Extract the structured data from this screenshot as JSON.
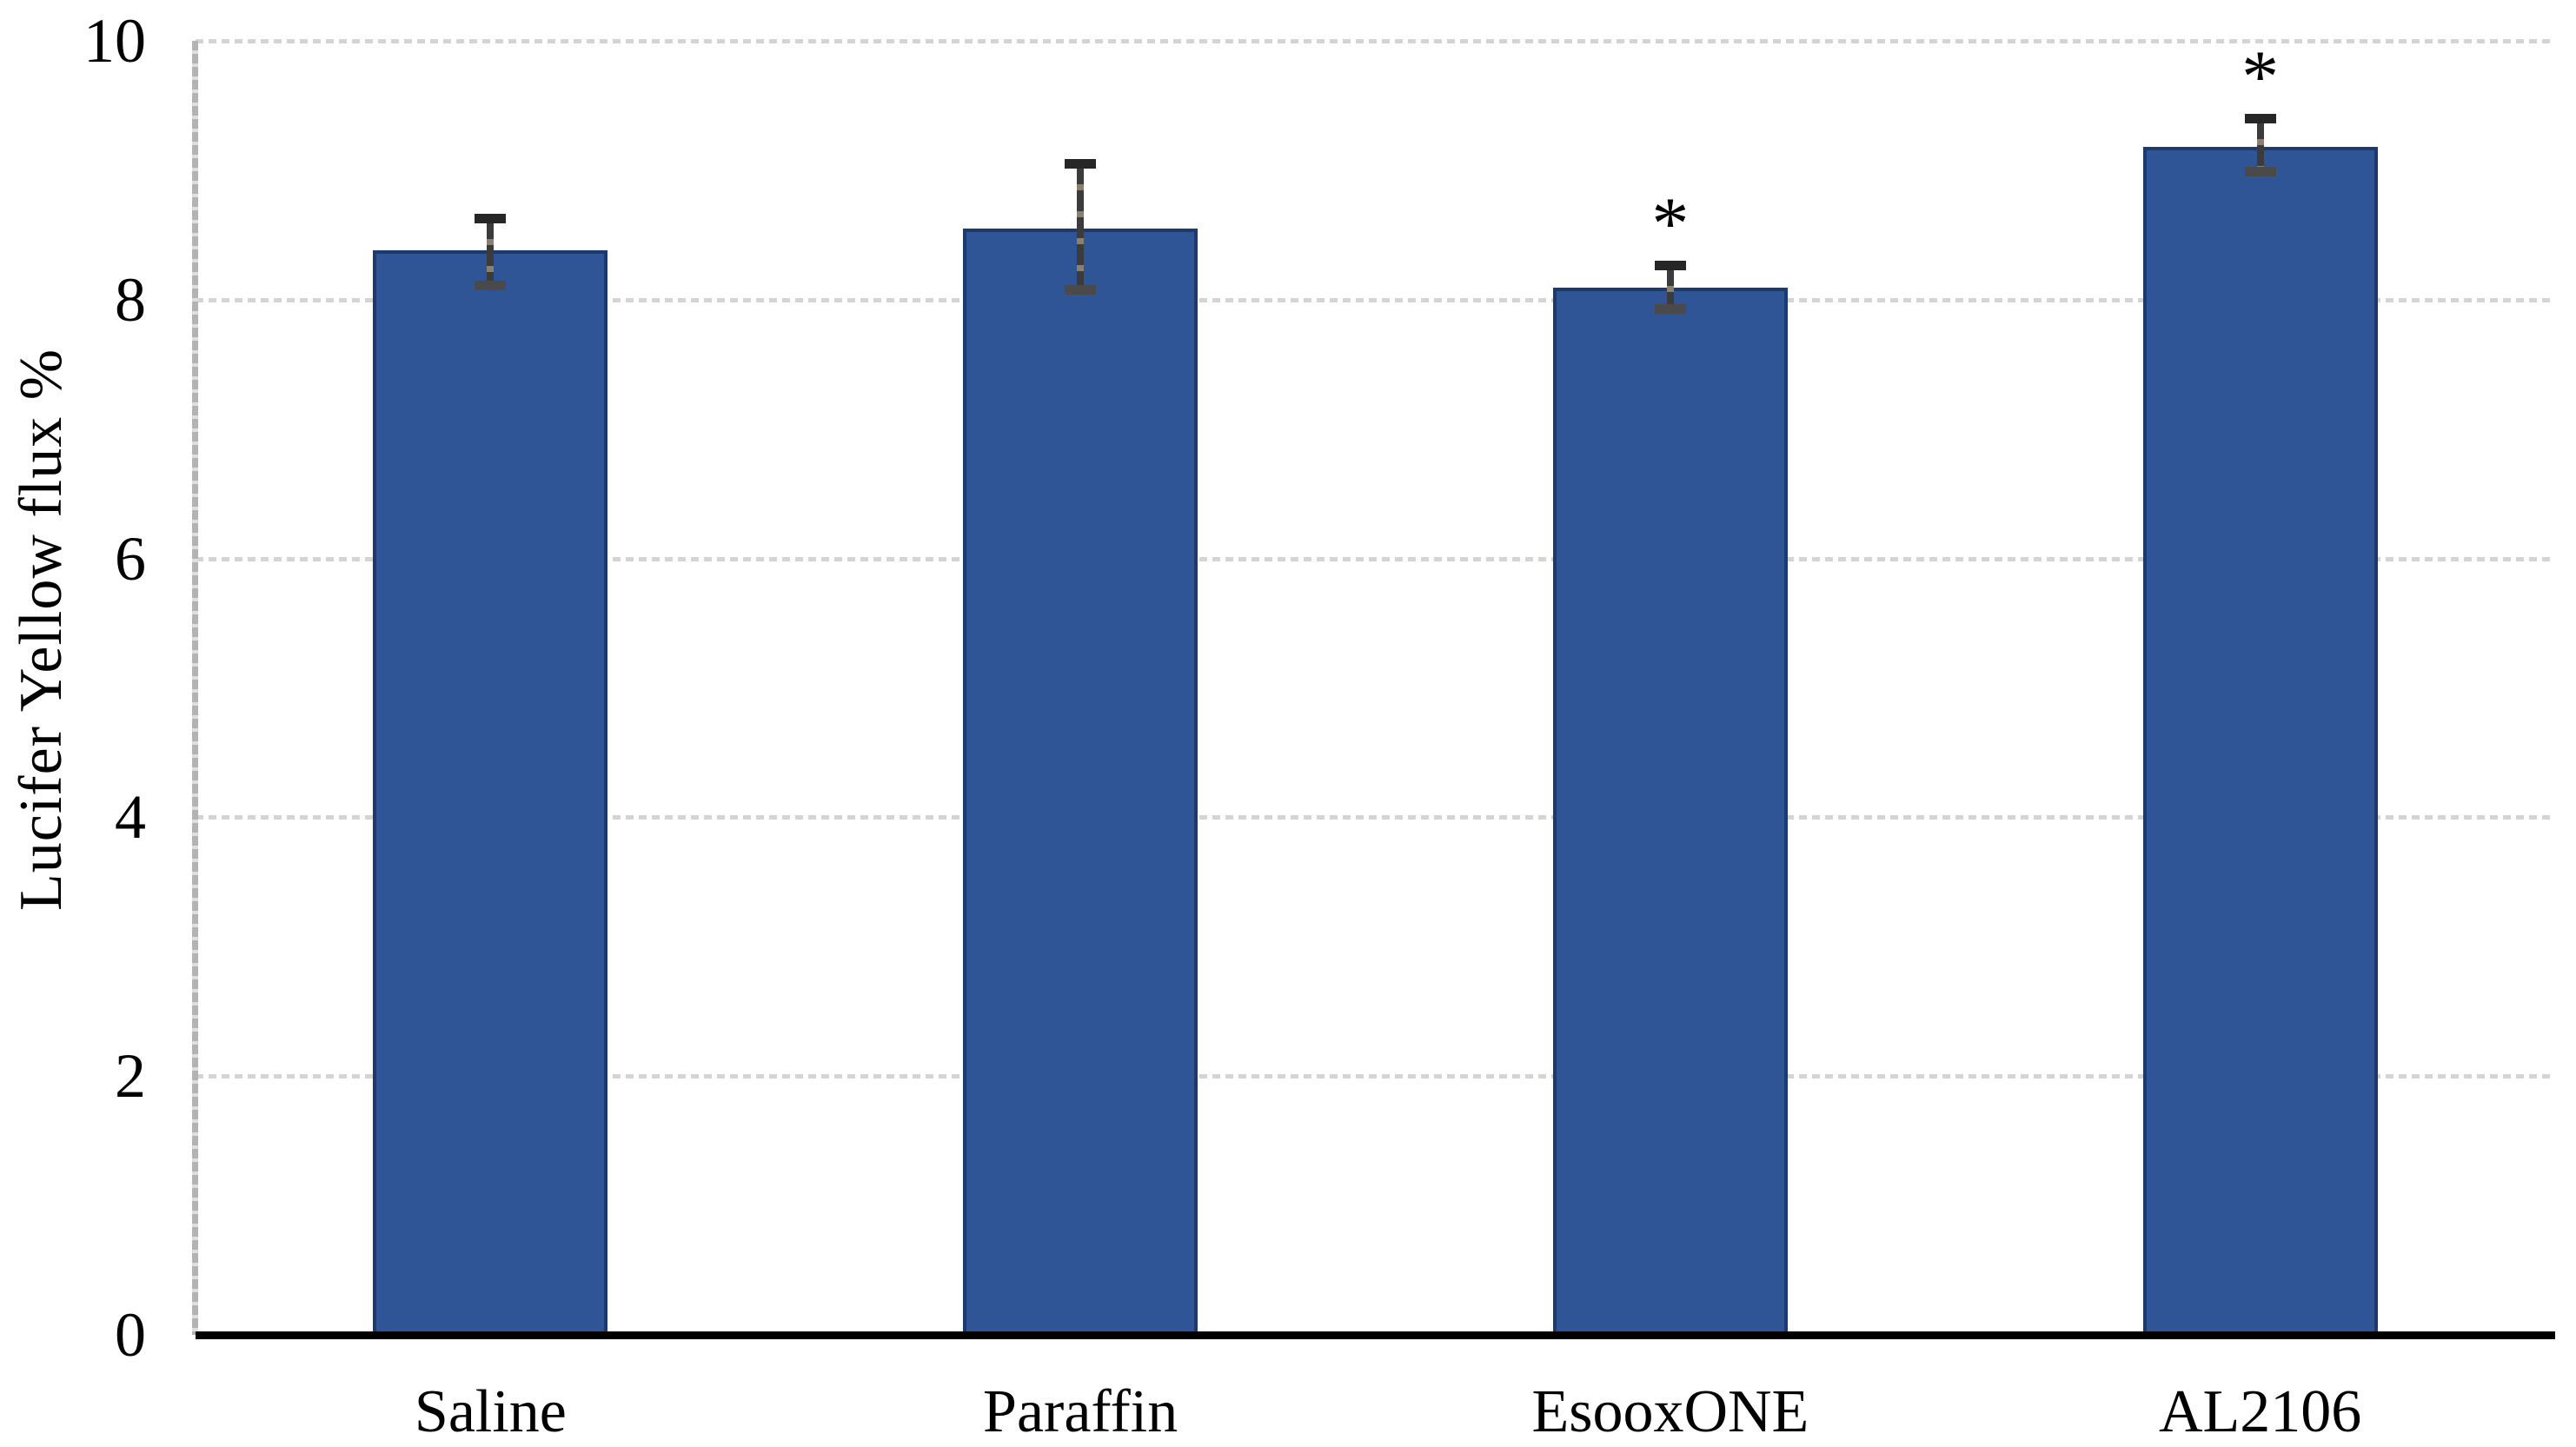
{
  "figure": {
    "background": "#ffffff"
  },
  "chart_data": {
    "type": "bar",
    "title": "",
    "xlabel": "",
    "ylabel": "Lucifer Yellow flux %",
    "categories": [
      "Saline",
      "Paraffin",
      "EsooxONE",
      "AL2106"
    ],
    "values": [
      8.38,
      8.55,
      8.09,
      9.18
    ],
    "error_plus": [
      0.25,
      0.5,
      0.18,
      0.22
    ],
    "error_minus": [
      0.27,
      0.47,
      0.16,
      0.19
    ],
    "significance": [
      "",
      "",
      "*",
      "*"
    ],
    "ylim": [
      0,
      10
    ],
    "yticks": [
      0,
      2,
      4,
      6,
      8,
      10
    ],
    "grid": true,
    "legend": false,
    "colors": {
      "bar_fill": "#2F5597",
      "bar_border": "#1C3A6E",
      "gridline": "#D4D4D4",
      "y_axis_line": "#BFBFBF",
      "baseline": "#000000",
      "error_bar": "#3B3B3B",
      "text": "#000000"
    }
  }
}
